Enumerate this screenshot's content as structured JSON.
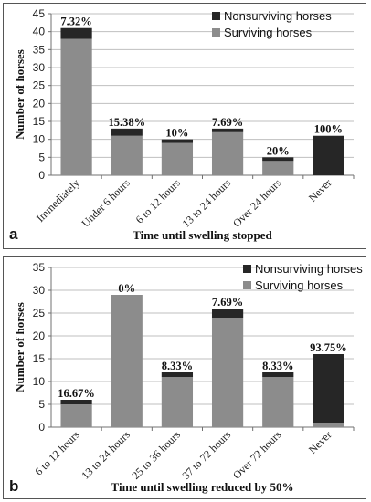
{
  "colors": {
    "surviving": "#8c8c8c",
    "nonsurviving": "#262626",
    "axis": "#707070",
    "gridline": "#bfbfbf"
  },
  "chart_data": [
    {
      "type": "bar",
      "stacked": true,
      "panel_label": "a",
      "xlabel": "Time until swelling stopped",
      "ylabel": "Number of horses",
      "ylim": [
        0,
        45
      ],
      "yticks": [
        0,
        5,
        10,
        15,
        20,
        25,
        30,
        35,
        40,
        45
      ],
      "grid": true,
      "legend_position": "top-right",
      "categories": [
        "Immediately",
        "Under 6 hours",
        "6 to 12 hours",
        "13 to 24 hours",
        "Over 24 hours",
        "Never"
      ],
      "series": [
        {
          "name": "Nonsurviving horses",
          "values": [
            3,
            2,
            1,
            1,
            1,
            11
          ]
        },
        {
          "name": "Surviving horses",
          "values": [
            38,
            11,
            9,
            12,
            4,
            0
          ]
        }
      ],
      "bar_labels": [
        "7.32%",
        "15.38%",
        "10%",
        "7.69%",
        "20%",
        "100%"
      ]
    },
    {
      "type": "bar",
      "stacked": true,
      "panel_label": "b",
      "xlabel": "Time until swelling reduced by 50%",
      "ylabel": "Number of horses",
      "ylim": [
        0,
        35
      ],
      "yticks": [
        0,
        5,
        10,
        15,
        20,
        25,
        30,
        35
      ],
      "grid": true,
      "legend_position": "top-right",
      "categories": [
        "6 to 12 hours",
        "13 to 24 hours",
        "25 to 36 hours",
        "37 to 72 hours",
        "Over 72 hours",
        "Never"
      ],
      "series": [
        {
          "name": "Nonsurviving horses",
          "values": [
            1,
            0,
            1,
            2,
            1,
            15
          ]
        },
        {
          "name": "Surviving horses",
          "values": [
            5,
            29,
            11,
            24,
            11,
            1
          ]
        }
      ],
      "bar_labels": [
        "16.67%",
        "0%",
        "8.33%",
        "7.69%",
        "8.33%",
        "93.75%"
      ]
    }
  ]
}
